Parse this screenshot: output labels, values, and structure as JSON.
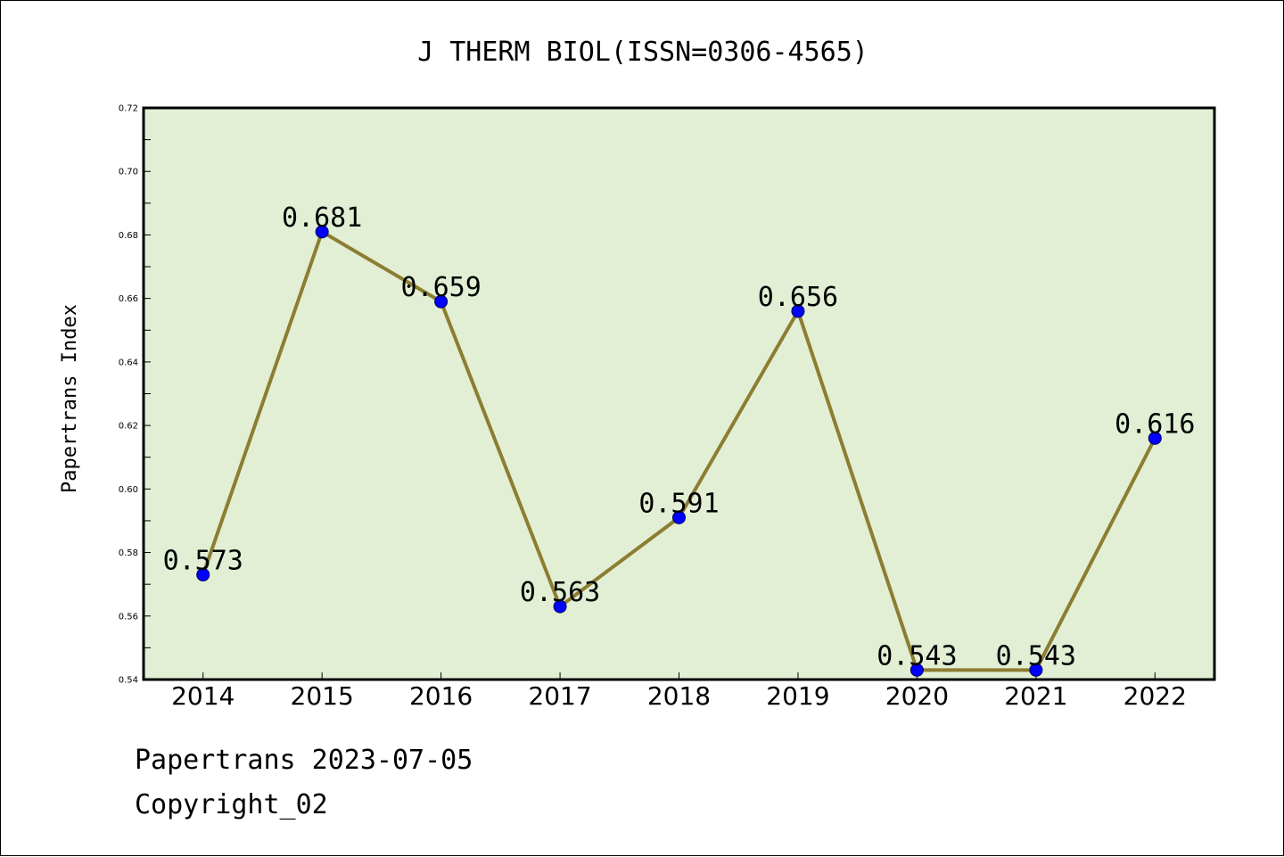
{
  "chart_data": {
    "type": "line",
    "title": "J THERM BIOL(ISSN=0306-4565)",
    "xlabel": "",
    "ylabel": "Papertrans Index",
    "categories": [
      "2014",
      "2015",
      "2016",
      "2017",
      "2018",
      "2019",
      "2020",
      "2021",
      "2022"
    ],
    "series": [
      {
        "values": [
          0.573,
          0.681,
          0.659,
          0.563,
          0.591,
          0.656,
          0.543,
          0.543,
          0.616
        ],
        "labels": [
          "0.573",
          "0.681",
          "0.659",
          "0.563",
          "0.591",
          "0.656",
          "0.543",
          "0.543",
          "0.616"
        ]
      }
    ],
    "ylim": [
      0.54,
      0.72
    ],
    "yticks": [
      "0.54",
      "0.56",
      "0.58",
      "0.60",
      "0.62",
      "0.64",
      "0.66",
      "0.68",
      "0.70",
      "0.72"
    ],
    "grid": false,
    "legend": "none",
    "colors": {
      "plot_background": "#e2efd4",
      "line": "#8c7d32",
      "marker": "#0000ff"
    }
  },
  "footer": {
    "line1": "Papertrans 2023-07-05",
    "line2": "Copyright_02"
  }
}
